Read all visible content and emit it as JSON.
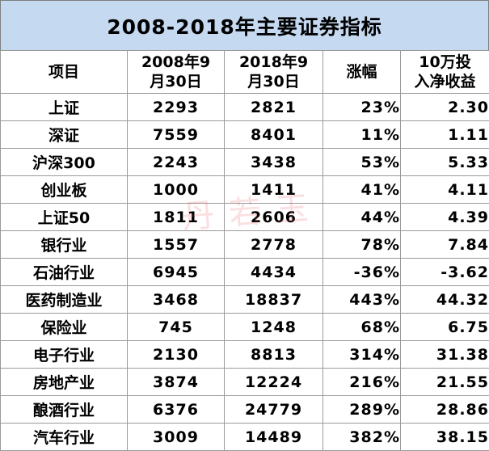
{
  "title": "2008-2018年主要证券指标",
  "headers": {
    "item": "项目",
    "col_2008_line1": "2008年9",
    "col_2008_line2": "月30日",
    "col_2018_line1": "2018年9",
    "col_2018_line2": "月30日",
    "change": "涨幅",
    "return_line1": "10万投",
    "return_line2": "入净收益"
  },
  "rows": [
    {
      "name": "上证",
      "v2008": "2293",
      "v2018": "2821",
      "change": "23%",
      "ret": "2.30",
      "negative": false
    },
    {
      "name": "深证",
      "v2008": "7559",
      "v2018": "8401",
      "change": "11%",
      "ret": "1.11",
      "negative": false
    },
    {
      "name": "沪深300",
      "v2008": "2243",
      "v2018": "3438",
      "change": "53%",
      "ret": "5.33",
      "negative": false
    },
    {
      "name": "创业板",
      "v2008": "1000",
      "v2018": "1411",
      "change": "41%",
      "ret": "4.11",
      "negative": false
    },
    {
      "name": "上证50",
      "v2008": "1811",
      "v2018": "2606",
      "change": "44%",
      "ret": "4.39",
      "negative": false
    },
    {
      "name": "银行业",
      "v2008": "1557",
      "v2018": "2778",
      "change": "78%",
      "ret": "7.84",
      "negative": false
    },
    {
      "name": "石油行业",
      "v2008": "6945",
      "v2018": "4434",
      "change": "-36%",
      "ret": "-3.62",
      "negative": true
    },
    {
      "name": "医药制造业",
      "v2008": "3468",
      "v2018": "18837",
      "change": "443%",
      "ret": "44.32",
      "negative": false
    },
    {
      "name": "保险业",
      "v2008": "745",
      "v2018": "1248",
      "change": "68%",
      "ret": "6.75",
      "negative": false
    },
    {
      "name": "电子行业",
      "v2008": "2130",
      "v2018": "8813",
      "change": "314%",
      "ret": "31.38",
      "negative": false
    },
    {
      "name": "房地产业",
      "v2008": "3874",
      "v2018": "12224",
      "change": "216%",
      "ret": "21.55",
      "negative": false
    },
    {
      "name": "酿酒行业",
      "v2008": "6376",
      "v2018": "24779",
      "change": "289%",
      "ret": "28.86",
      "negative": false
    },
    {
      "name": "汽车行业",
      "v2008": "3009",
      "v2018": "14489",
      "change": "382%",
      "ret": "38.15",
      "negative": false
    }
  ],
  "watermark": "丹若玉",
  "colors": {
    "header_bg": "#c5d9f1",
    "negative": "#e8121c",
    "grid": "#9a9a9a"
  }
}
